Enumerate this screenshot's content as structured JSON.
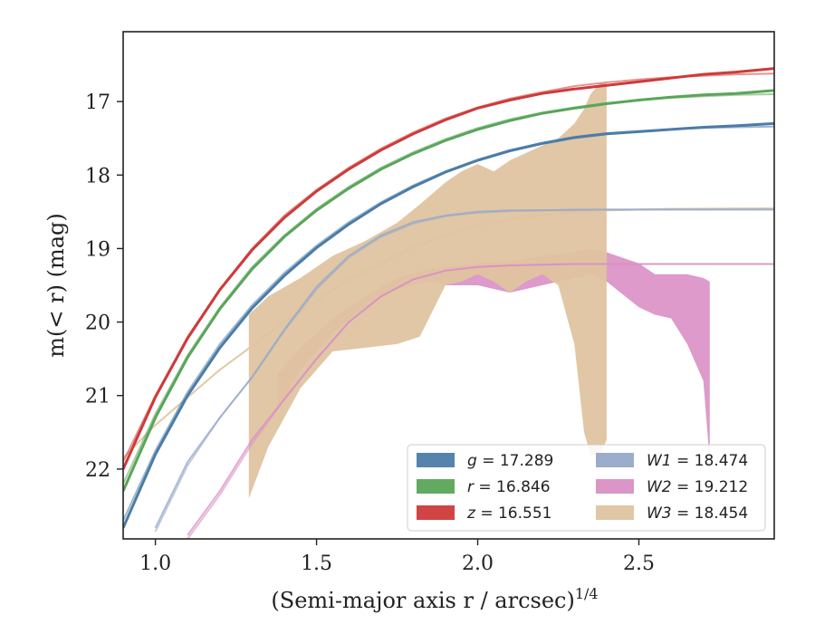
{
  "chart_data": {
    "type": "line",
    "title": "",
    "xlabel": "(Semi-major axis r / arcsec)",
    "xlabel_exponent": "1/4",
    "ylabel": "m(< r) (mag)",
    "xlim": [
      0.9,
      2.92
    ],
    "ylim": [
      22.95,
      16.05
    ],
    "y_inverted": true,
    "x_ticks": [
      1.0,
      1.5,
      2.0,
      2.5
    ],
    "x_tick_labels": [
      "1.0",
      "1.5",
      "2.0",
      "2.5"
    ],
    "y_ticks": [
      17,
      18,
      19,
      20,
      21,
      22
    ],
    "y_tick_labels": [
      "17",
      "18",
      "19",
      "20",
      "21",
      "22"
    ],
    "grid": false,
    "legend_position": "lower-right",
    "legend": [
      {
        "label": "g = 17.289",
        "name": "g",
        "value": "17.289",
        "color": "#4c7ca8"
      },
      {
        "label": "W1 = 18.474",
        "name": "W1",
        "value": "18.474",
        "color": "#97a8c8"
      },
      {
        "label": "r = 16.846",
        "name": "r",
        "value": "16.846",
        "color": "#5aa55a"
      },
      {
        "label": "W2 = 19.212",
        "name": "W2",
        "value": "19.212",
        "color": "#d98fc4"
      },
      {
        "label": "z = 16.551",
        "name": "z",
        "value": "16.551",
        "color": "#cf3a3a"
      },
      {
        "label": "W3 = 18.454",
        "name": "W3",
        "value": "18.454",
        "color": "#dfc4a0"
      }
    ],
    "series": [
      {
        "name": "z",
        "color": "#cf3a3a",
        "data_x": [
          0.9,
          1.0,
          1.1,
          1.2,
          1.3,
          1.4,
          1.5,
          1.6,
          1.7,
          1.8,
          1.9,
          2.0,
          2.1,
          2.2,
          2.3,
          2.4,
          2.5,
          2.6,
          2.7,
          2.8,
          2.92
        ],
        "data_y": [
          22.0,
          21.02,
          20.22,
          19.56,
          19.02,
          18.58,
          18.22,
          17.92,
          17.66,
          17.44,
          17.25,
          17.09,
          16.98,
          16.89,
          16.83,
          16.78,
          16.73,
          16.68,
          16.63,
          16.6,
          16.55
        ],
        "model_x": [
          0.9,
          1.0,
          1.1,
          1.2,
          1.3,
          1.4,
          1.5,
          1.6,
          1.7,
          1.8,
          1.9,
          2.0,
          2.1,
          2.2,
          2.3,
          2.4,
          2.5,
          2.6,
          2.7,
          2.8,
          2.92
        ],
        "model_y": [
          21.9,
          21.0,
          20.2,
          19.55,
          19.0,
          18.55,
          18.2,
          17.9,
          17.64,
          17.42,
          17.23,
          17.08,
          16.96,
          16.87,
          16.79,
          16.74,
          16.7,
          16.67,
          16.65,
          16.63,
          16.62
        ],
        "band_lower": [],
        "band_upper": []
      },
      {
        "name": "r",
        "color": "#5aa55a",
        "data_x": [
          0.9,
          1.0,
          1.1,
          1.2,
          1.3,
          1.4,
          1.5,
          1.6,
          1.7,
          1.8,
          1.9,
          2.0,
          2.1,
          2.2,
          2.3,
          2.4,
          2.5,
          2.6,
          2.7,
          2.8,
          2.92
        ],
        "data_y": [
          22.3,
          21.3,
          20.48,
          19.82,
          19.28,
          18.84,
          18.48,
          18.18,
          17.92,
          17.71,
          17.53,
          17.38,
          17.26,
          17.16,
          17.09,
          17.03,
          16.98,
          16.94,
          16.91,
          16.89,
          16.85
        ],
        "model_x": [
          0.9,
          1.0,
          1.1,
          1.2,
          1.3,
          1.4,
          1.5,
          1.6,
          1.7,
          1.8,
          1.9,
          2.0,
          2.1,
          2.2,
          2.3,
          2.4,
          2.5,
          2.6,
          2.7,
          2.8,
          2.92
        ],
        "model_y": [
          22.2,
          21.25,
          20.45,
          19.8,
          19.25,
          18.82,
          18.46,
          18.16,
          17.9,
          17.69,
          17.51,
          17.36,
          17.24,
          17.15,
          17.08,
          17.02,
          16.98,
          16.95,
          16.93,
          16.91,
          16.9
        ],
        "band_lower": [],
        "band_upper": []
      },
      {
        "name": "g",
        "color": "#4c7ca8",
        "data_x": [
          0.9,
          1.0,
          1.1,
          1.2,
          1.3,
          1.4,
          1.5,
          1.6,
          1.7,
          1.8,
          1.9,
          2.0,
          2.1,
          2.2,
          2.3,
          2.4,
          2.5,
          2.6,
          2.7,
          2.8,
          2.92
        ],
        "data_y": [
          22.8,
          21.8,
          21.0,
          20.35,
          19.81,
          19.37,
          18.99,
          18.67,
          18.39,
          18.16,
          17.96,
          17.8,
          17.67,
          17.57,
          17.49,
          17.44,
          17.41,
          17.38,
          17.35,
          17.33,
          17.3
        ],
        "model_x": [
          0.9,
          1.0,
          1.1,
          1.2,
          1.3,
          1.4,
          1.5,
          1.6,
          1.7,
          1.8,
          1.9,
          2.0,
          2.1,
          2.2,
          2.3,
          2.4,
          2.5,
          2.6,
          2.7,
          2.8,
          2.92
        ],
        "model_y": [
          22.7,
          21.75,
          20.95,
          20.3,
          19.77,
          19.33,
          18.96,
          18.64,
          18.37,
          18.14,
          17.95,
          17.79,
          17.66,
          17.56,
          17.48,
          17.43,
          17.4,
          17.38,
          17.36,
          17.35,
          17.34
        ],
        "band_lower": [],
        "band_upper": []
      },
      {
        "name": "W1",
        "color": "#97a8c8",
        "data_x": [
          1.0,
          1.1,
          1.2,
          1.3,
          1.4,
          1.5,
          1.6,
          1.7,
          1.8,
          1.9,
          2.0,
          2.1,
          2.2,
          2.3,
          2.4,
          2.5,
          2.6,
          2.7,
          2.8,
          2.92
        ],
        "data_y": [
          22.8,
          21.9,
          21.3,
          20.75,
          20.1,
          19.52,
          19.1,
          18.82,
          18.64,
          18.55,
          18.5,
          18.48,
          18.48,
          18.47,
          18.47,
          18.47,
          18.47,
          18.47,
          18.47,
          18.47
        ],
        "model_x": [
          1.0,
          1.1,
          1.2,
          1.3,
          1.4,
          1.5,
          1.6,
          1.7,
          1.8,
          1.9,
          2.0,
          2.1,
          2.2,
          2.3,
          2.4,
          2.5,
          2.6,
          2.7,
          2.8,
          2.92
        ],
        "model_y": [
          22.85,
          21.95,
          21.3,
          20.75,
          20.12,
          19.55,
          19.12,
          18.84,
          18.66,
          18.56,
          18.51,
          18.49,
          18.48,
          18.48,
          18.47,
          18.47,
          18.47,
          18.47,
          18.47,
          18.47
        ],
        "band_lower": [],
        "band_upper": []
      },
      {
        "name": "W2",
        "color": "#d98fc4",
        "data_x": [
          1.1,
          1.2,
          1.3,
          1.4,
          1.5,
          1.6,
          1.7,
          1.8,
          1.9,
          2.0,
          2.1,
          2.2,
          2.3,
          2.4,
          2.5,
          2.6,
          2.7,
          2.8,
          2.92
        ],
        "data_y": [
          22.9,
          22.3,
          21.6,
          21.05,
          20.5,
          20.0,
          19.65,
          19.42,
          19.3,
          19.25,
          19.23,
          19.22,
          19.21,
          19.21,
          19.21,
          19.21,
          19.21,
          19.21,
          19.21
        ],
        "model_x": [
          1.1,
          1.2,
          1.3,
          1.4,
          1.5,
          1.6,
          1.7,
          1.8,
          1.9,
          2.0,
          2.1,
          2.2,
          2.3,
          2.4,
          2.5,
          2.6,
          2.7,
          2.8,
          2.92
        ],
        "model_y": [
          22.95,
          22.35,
          21.65,
          21.05,
          20.5,
          20.0,
          19.65,
          19.42,
          19.3,
          19.25,
          19.23,
          19.22,
          19.21,
          19.21,
          19.21,
          19.21,
          19.21,
          19.21,
          19.21
        ],
        "band_x": [
          1.38,
          1.45,
          1.55,
          1.65,
          1.75,
          1.85,
          1.9,
          2.0,
          2.1,
          2.2,
          2.3,
          2.35,
          2.4,
          2.5,
          2.55,
          2.6,
          2.65,
          2.7,
          2.72
        ],
        "band_lower": [
          21.2,
          20.65,
          20.15,
          19.8,
          19.55,
          19.45,
          19.5,
          19.5,
          19.6,
          19.5,
          19.4,
          19.35,
          19.45,
          19.8,
          19.9,
          19.95,
          20.3,
          20.8,
          21.9
        ],
        "band_upper": [
          20.7,
          20.35,
          19.95,
          19.65,
          19.4,
          19.28,
          19.25,
          19.2,
          19.18,
          19.1,
          19.05,
          19.0,
          19.05,
          19.2,
          19.35,
          19.35,
          19.35,
          19.4,
          19.45
        ]
      },
      {
        "name": "W3",
        "color": "#dfc4a0",
        "data_x": [
          0.9,
          1.0,
          1.2,
          1.4,
          1.6,
          1.8,
          2.0,
          2.2,
          2.4,
          2.6,
          2.8,
          2.92
        ],
        "data_y": [
          21.85,
          21.4,
          20.65,
          20.0,
          19.42,
          18.98,
          18.68,
          18.54,
          18.48,
          18.46,
          18.455,
          18.454
        ],
        "model_x": [
          0.9,
          1.0,
          1.2,
          1.4,
          1.6,
          1.8,
          2.0,
          2.2,
          2.4,
          2.6,
          2.8,
          2.92
        ],
        "model_y": [
          21.85,
          21.4,
          20.65,
          20.0,
          19.42,
          18.98,
          18.68,
          18.54,
          18.48,
          18.46,
          18.455,
          18.454
        ],
        "band_x": [
          1.29,
          1.35,
          1.45,
          1.55,
          1.65,
          1.75,
          1.82,
          1.9,
          1.95,
          2.0,
          2.05,
          2.1,
          2.15,
          2.2,
          2.25,
          2.3,
          2.33,
          2.35,
          2.38,
          2.4
        ],
        "band_lower": [
          22.4,
          21.7,
          20.9,
          20.4,
          20.35,
          20.3,
          20.2,
          19.5,
          19.45,
          19.35,
          19.45,
          19.6,
          19.45,
          19.35,
          19.5,
          20.3,
          21.5,
          21.8,
          21.8,
          21.6
        ],
        "band_upper": [
          19.9,
          19.65,
          19.4,
          19.1,
          18.9,
          18.65,
          18.4,
          18.1,
          17.95,
          17.85,
          17.95,
          17.8,
          17.7,
          17.6,
          17.5,
          17.3,
          17.1,
          16.9,
          16.75,
          16.75
        ]
      }
    ]
  }
}
